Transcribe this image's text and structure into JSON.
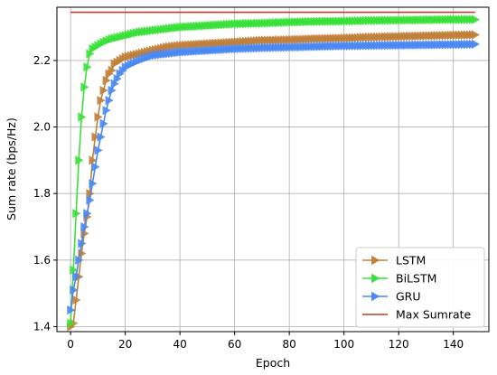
{
  "chart_data": {
    "type": "line",
    "xlabel": "Epoch",
    "ylabel": "Sum rate (bps/Hz)",
    "xlim": [
      -5,
      153
    ],
    "ylim": [
      1.385,
      2.36
    ],
    "xticks": [
      0,
      20,
      40,
      60,
      80,
      100,
      120,
      140
    ],
    "xtick_labels": [
      "0",
      "20",
      "40",
      "60",
      "80",
      "100",
      "120",
      "140"
    ],
    "yticks": [
      1.4,
      1.6,
      1.8,
      2.0,
      2.2
    ],
    "ytick_labels": [
      "1.4",
      "1.6",
      "1.8",
      "2.0",
      "2.2"
    ],
    "grid": true,
    "legend_position": "lower-right",
    "marker": "right-triangle",
    "series": [
      {
        "name": "LSTM",
        "color": "#c0803a",
        "points": [
          [
            0,
            1.4
          ],
          [
            1,
            1.41
          ],
          [
            2,
            1.48
          ],
          [
            3,
            1.55
          ],
          [
            4,
            1.62
          ],
          [
            5,
            1.68
          ],
          [
            6,
            1.73
          ],
          [
            7,
            1.8
          ],
          [
            8,
            1.9
          ],
          [
            9,
            1.97
          ],
          [
            10,
            2.03
          ],
          [
            11,
            2.08
          ],
          [
            12,
            2.11
          ],
          [
            13,
            2.14
          ],
          [
            14,
            2.16
          ],
          [
            15,
            2.17
          ],
          [
            16,
            2.19
          ],
          [
            18,
            2.2
          ],
          [
            20,
            2.21
          ],
          [
            25,
            2.22
          ],
          [
            30,
            2.23
          ],
          [
            35,
            2.24
          ],
          [
            40,
            2.245
          ],
          [
            50,
            2.25
          ],
          [
            60,
            2.255
          ],
          [
            70,
            2.26
          ],
          [
            80,
            2.262
          ],
          [
            90,
            2.265
          ],
          [
            100,
            2.267
          ],
          [
            110,
            2.27
          ],
          [
            120,
            2.272
          ],
          [
            130,
            2.274
          ],
          [
            140,
            2.276
          ],
          [
            148,
            2.277
          ]
        ]
      },
      {
        "name": "BiLSTM",
        "color": "#3ae03a",
        "points": [
          [
            0,
            1.41
          ],
          [
            1,
            1.57
          ],
          [
            2,
            1.74
          ],
          [
            3,
            1.9
          ],
          [
            4,
            2.03
          ],
          [
            5,
            2.12
          ],
          [
            6,
            2.18
          ],
          [
            7,
            2.22
          ],
          [
            8,
            2.235
          ],
          [
            10,
            2.245
          ],
          [
            12,
            2.255
          ],
          [
            15,
            2.265
          ],
          [
            20,
            2.275
          ],
          [
            25,
            2.285
          ],
          [
            30,
            2.29
          ],
          [
            40,
            2.3
          ],
          [
            50,
            2.305
          ],
          [
            60,
            2.31
          ],
          [
            70,
            2.312
          ],
          [
            80,
            2.315
          ],
          [
            90,
            2.317
          ],
          [
            100,
            2.318
          ],
          [
            110,
            2.32
          ],
          [
            120,
            2.321
          ],
          [
            130,
            2.322
          ],
          [
            140,
            2.323
          ],
          [
            148,
            2.323
          ]
        ]
      },
      {
        "name": "GRU",
        "color": "#4a88f2",
        "points": [
          [
            0,
            1.45
          ],
          [
            1,
            1.51
          ],
          [
            2,
            1.55
          ],
          [
            3,
            1.6
          ],
          [
            4,
            1.65
          ],
          [
            5,
            1.7
          ],
          [
            6,
            1.74
          ],
          [
            7,
            1.78
          ],
          [
            8,
            1.83
          ],
          [
            9,
            1.88
          ],
          [
            10,
            1.93
          ],
          [
            11,
            1.97
          ],
          [
            12,
            2.01
          ],
          [
            13,
            2.05
          ],
          [
            14,
            2.08
          ],
          [
            15,
            2.11
          ],
          [
            16,
            2.13
          ],
          [
            18,
            2.16
          ],
          [
            20,
            2.18
          ],
          [
            25,
            2.2
          ],
          [
            30,
            2.215
          ],
          [
            40,
            2.225
          ],
          [
            50,
            2.23
          ],
          [
            60,
            2.235
          ],
          [
            70,
            2.238
          ],
          [
            80,
            2.24
          ],
          [
            90,
            2.242
          ],
          [
            100,
            2.244
          ],
          [
            110,
            2.245
          ],
          [
            120,
            2.246
          ],
          [
            130,
            2.247
          ],
          [
            140,
            2.248
          ],
          [
            148,
            2.249
          ]
        ]
      },
      {
        "name": "Max Sumrate",
        "color": "#c0392b",
        "points": [
          [
            0,
            2.345
          ],
          [
            148,
            2.345
          ]
        ]
      }
    ]
  }
}
